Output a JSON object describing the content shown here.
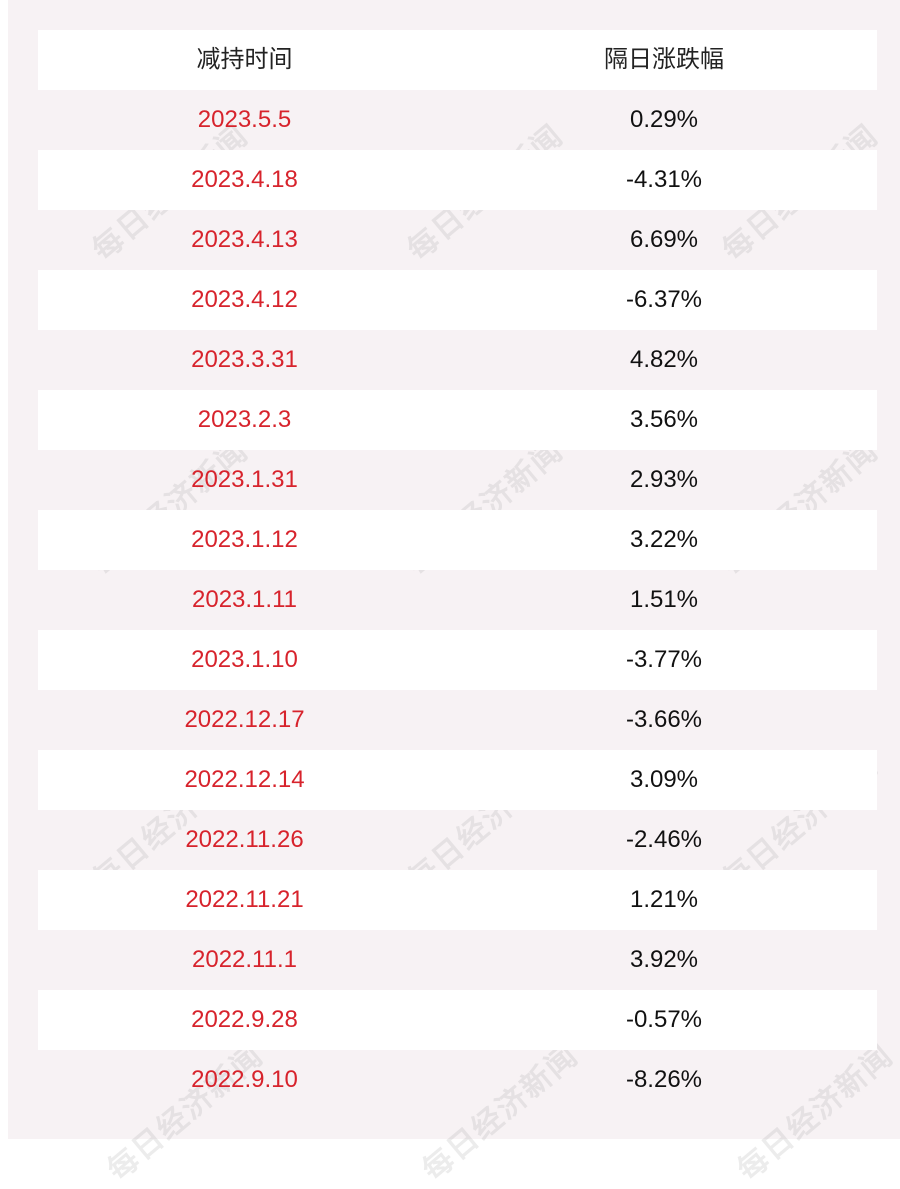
{
  "table": {
    "headers": [
      "减持时间",
      "隔日涨跌幅"
    ],
    "rows": [
      {
        "date": "2023.5.5",
        "change": "0.29%"
      },
      {
        "date": "2023.4.18",
        "change": "-4.31%"
      },
      {
        "date": "2023.4.13",
        "change": "6.69%"
      },
      {
        "date": "2023.4.12",
        "change": "-6.37%"
      },
      {
        "date": "2023.3.31",
        "change": "4.82%"
      },
      {
        "date": "2023.2.3",
        "change": "3.56%"
      },
      {
        "date": "2023.1.31",
        "change": "2.93%"
      },
      {
        "date": "2023.1.12",
        "change": "3.22%"
      },
      {
        "date": "2023.1.11",
        "change": "1.51%"
      },
      {
        "date": "2023.1.10",
        "change": "-3.77%"
      },
      {
        "date": "2022.12.17",
        "change": "-3.66%"
      },
      {
        "date": "2022.12.14",
        "change": "3.09%"
      },
      {
        "date": "2022.11.26",
        "change": "-2.46%"
      },
      {
        "date": "2022.11.21",
        "change": "1.21%"
      },
      {
        "date": "2022.11.1",
        "change": "3.92%"
      },
      {
        "date": "2022.9.28",
        "change": "-0.57%"
      },
      {
        "date": "2022.9.10",
        "change": "-8.26%"
      }
    ]
  },
  "watermark": "每日经济新闻",
  "colors": {
    "date_text": "#d7232c",
    "change_text": "#111111",
    "stripe_white": "#ffffff",
    "stripe_tint": "#f7f2f4"
  }
}
